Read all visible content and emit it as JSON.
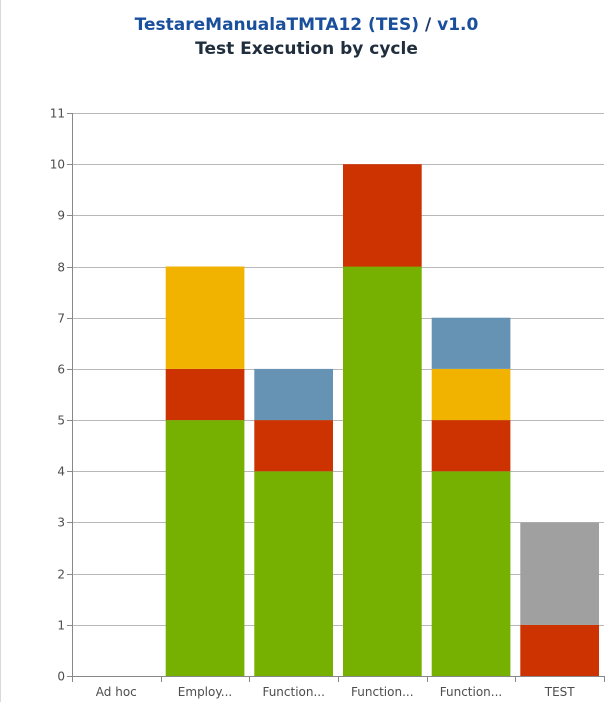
{
  "header": {
    "project_link": "TestareManualaTMTA12 (TES)",
    "separator": "/",
    "version_link": "v1.0",
    "subtitle": "Test Execution by cycle"
  },
  "colors": {
    "passed": "#76b000",
    "failed": "#cc3300",
    "wip": "#f2b200",
    "blocked": "#6692b3",
    "unexecuted": "#a0a0a0"
  },
  "chart_data": {
    "type": "bar",
    "stacked": true,
    "title": "Test Execution by cycle",
    "xlabel": "",
    "ylabel": "",
    "ylim": [
      0,
      11
    ],
    "yticks": [
      0,
      1,
      2,
      3,
      4,
      5,
      6,
      7,
      8,
      9,
      10,
      11
    ],
    "grid": true,
    "categories": [
      "Ad hoc",
      "Employ...",
      "Function...",
      "Function...",
      "Function...",
      "TEST"
    ],
    "series": [
      {
        "color": "#76b000",
        "values": [
          0,
          5,
          4,
          8,
          4,
          0
        ]
      },
      {
        "color": "#cc3300",
        "values": [
          0,
          1,
          1,
          2,
          1,
          1
        ]
      },
      {
        "color": "#f2b200",
        "values": [
          0,
          2,
          0,
          0,
          1,
          0
        ]
      },
      {
        "color": "#6692b3",
        "values": [
          0,
          0,
          1,
          0,
          1,
          0
        ]
      },
      {
        "color": "#a0a0a0",
        "values": [
          0,
          0,
          0,
          0,
          0,
          2
        ]
      }
    ]
  }
}
